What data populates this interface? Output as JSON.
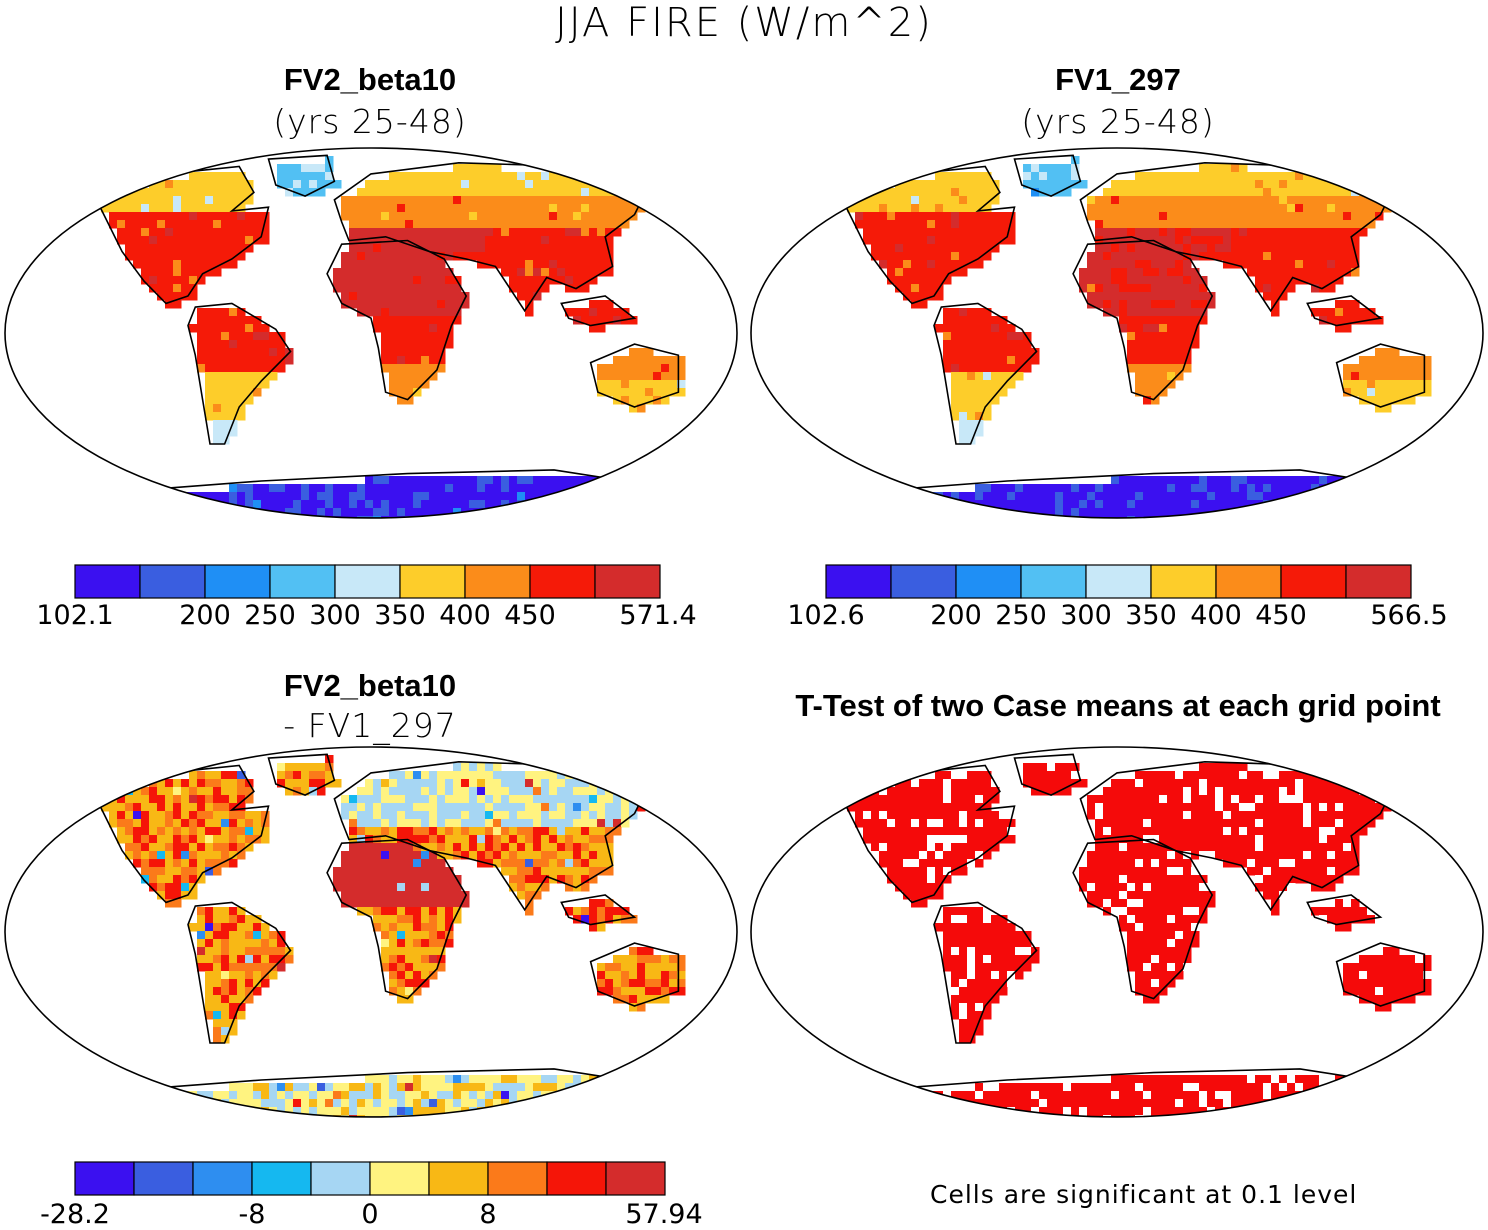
{
  "figure_title": "JJA FIRE (W/m^2)",
  "significance_note": "Cells are significant at 0.1 level",
  "colors": {
    "palette_abs": [
      "#3b10f0",
      "#3a5ee0",
      "#1f8ff5",
      "#52c0f3",
      "#c8e8f8",
      "#fdcd2a",
      "#fb8c1a",
      "#f51a08",
      "#d42c2c"
    ],
    "palette_diff": [
      "#3b10f0",
      "#3a5ee0",
      "#2e8ef0",
      "#15b8f0",
      "#a6d6f3",
      "#fff380",
      "#f8b815",
      "#fb7a1a",
      "#f51508",
      "#d42c2c"
    ],
    "significant": "#f50a0a"
  },
  "chart_data": [
    {
      "type": "heatmap",
      "title": "FV2_beta10",
      "subtitle": "(yrs 25-48)",
      "projection": "robinson",
      "colorbar": {
        "min": 102.1,
        "max": 571.4,
        "levels": [
          200,
          250,
          300,
          350,
          400,
          450
        ],
        "tick_labels": [
          "102.1",
          "200",
          "250",
          "300",
          "350",
          "400",
          "450",
          "571.4"
        ]
      }
    },
    {
      "type": "heatmap",
      "title": "FV1_297",
      "subtitle": "(yrs 25-48)",
      "projection": "robinson",
      "colorbar": {
        "min": 102.6,
        "max": 566.5,
        "levels": [
          200,
          250,
          300,
          350,
          400,
          450
        ],
        "tick_labels": [
          "102.6",
          "200",
          "250",
          "300",
          "350",
          "400",
          "450",
          "566.5"
        ]
      }
    },
    {
      "type": "heatmap",
      "title": "FV2_beta10",
      "subtitle": "- FV1_297",
      "projection": "robinson",
      "colorbar": {
        "min": -28.2,
        "max": 57.94,
        "levels": [
          -16,
          -12,
          -8,
          -4,
          0,
          4,
          8,
          12
        ],
        "tick_labels": [
          "-28.2",
          "-8",
          "0",
          "8",
          "57.94"
        ]
      }
    },
    {
      "type": "heatmap",
      "title": "T-Test of two Case means at each grid point",
      "subtitle": "",
      "projection": "robinson",
      "significance_level": 0.1
    }
  ]
}
